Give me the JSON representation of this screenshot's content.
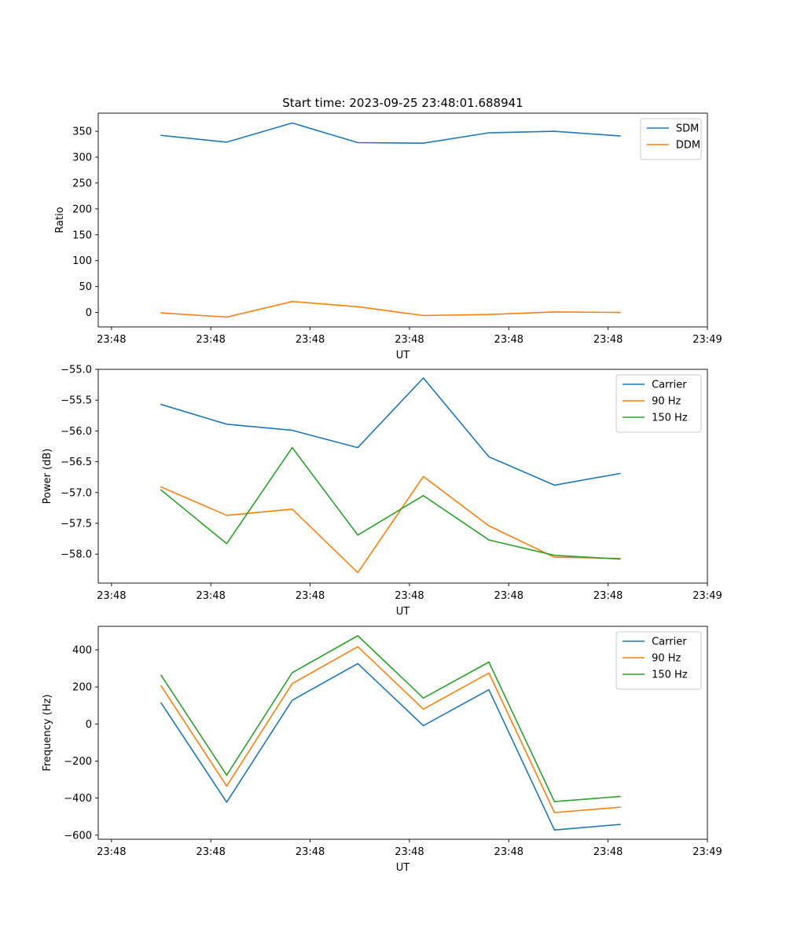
{
  "figure_title": "Start time: 2023-09-25 23:48:01.688941",
  "chart_data": [
    {
      "type": "line",
      "title": "Start time: 2023-09-25 23:48:01.688941",
      "xlabel": "UT",
      "ylabel": "Ratio",
      "xlim": [
        -0.2,
        9
      ],
      "ylim": [
        -28,
        385
      ],
      "x_ticks": [
        0,
        1.5,
        3,
        4.5,
        6,
        7.5,
        9
      ],
      "x_tick_labels": [
        "23:48",
        "23:48",
        "23:48",
        "23:48",
        "23:48",
        "23:48",
        "23:49"
      ],
      "y_ticks": [
        0,
        50,
        100,
        150,
        200,
        250,
        300,
        350
      ],
      "y_tick_labels": [
        "0",
        "50",
        "100",
        "150",
        "200",
        "250",
        "300",
        "350"
      ],
      "x": [
        0.75,
        1.74,
        2.73,
        3.72,
        4.71,
        5.7,
        6.69,
        7.68
      ],
      "legend_position": "top-right",
      "series": [
        {
          "name": "SDM",
          "color": "#1f77b4",
          "values": [
            342,
            329,
            366,
            328,
            327,
            347,
            350,
            341
          ]
        },
        {
          "name": "DDM",
          "color": "#ff7f0e",
          "values": [
            -1,
            -9,
            21,
            11,
            -6,
            -4,
            1,
            0
          ]
        }
      ]
    },
    {
      "type": "line",
      "title": "",
      "xlabel": "UT",
      "ylabel": "Power (dB)",
      "xlim": [
        -0.2,
        9
      ],
      "ylim": [
        -58.47,
        -55
      ],
      "x_ticks": [
        0,
        1.5,
        3,
        4.5,
        6,
        7.5,
        9
      ],
      "x_tick_labels": [
        "23:48",
        "23:48",
        "23:48",
        "23:48",
        "23:48",
        "23:48",
        "23:49"
      ],
      "y_ticks": [
        -58.0,
        -57.5,
        -57.0,
        -56.5,
        -56.0,
        -55.5,
        -55.0
      ],
      "y_tick_labels": [
        "−58.0",
        "−57.5",
        "−57.0",
        "−56.5",
        "−56.0",
        "−55.5",
        "−55.0"
      ],
      "x": [
        0.75,
        1.74,
        2.73,
        3.72,
        4.71,
        5.7,
        6.69,
        7.68
      ],
      "legend_position": "top-right",
      "series": [
        {
          "name": "Carrier",
          "color": "#1f77b4",
          "values": [
            -55.57,
            -55.89,
            -55.99,
            -56.27,
            -55.14,
            -56.42,
            -56.88,
            -56.69
          ]
        },
        {
          "name": "90 Hz",
          "color": "#ff7f0e",
          "values": [
            -56.91,
            -57.37,
            -57.27,
            -58.3,
            -56.74,
            -57.54,
            -58.05,
            -58.07
          ]
        },
        {
          "name": "150 Hz",
          "color": "#2ca02c",
          "values": [
            -56.96,
            -57.83,
            -56.27,
            -57.69,
            -57.05,
            -57.77,
            -58.02,
            -58.08
          ]
        }
      ]
    },
    {
      "type": "line",
      "title": "",
      "xlabel": "UT",
      "ylabel": "Frequency (Hz)",
      "xlim": [
        -0.2,
        9
      ],
      "ylim": [
        -622,
        527
      ],
      "x_ticks": [
        0,
        1.5,
        3,
        4.5,
        6,
        7.5,
        9
      ],
      "x_tick_labels": [
        "23:48",
        "23:48",
        "23:48",
        "23:48",
        "23:48",
        "23:48",
        "23:49"
      ],
      "y_ticks": [
        -600,
        -400,
        -200,
        0,
        200,
        400
      ],
      "y_tick_labels": [
        "−600",
        "−400",
        "−200",
        "0",
        "200",
        "400"
      ],
      "x": [
        0.75,
        1.74,
        2.73,
        3.72,
        4.71,
        5.7,
        6.69,
        7.68
      ],
      "legend_position": "top-right",
      "series": [
        {
          "name": "Carrier",
          "color": "#1f77b4",
          "values": [
            113,
            -422,
            128,
            326,
            -9,
            185,
            -572,
            -542
          ]
        },
        {
          "name": "90 Hz",
          "color": "#ff7f0e",
          "values": [
            205,
            -335,
            218,
            417,
            80,
            275,
            -478,
            -449
          ]
        },
        {
          "name": "150 Hz",
          "color": "#2ca02c",
          "values": [
            263,
            -276,
            277,
            476,
            140,
            334,
            -419,
            -391
          ]
        }
      ]
    }
  ]
}
